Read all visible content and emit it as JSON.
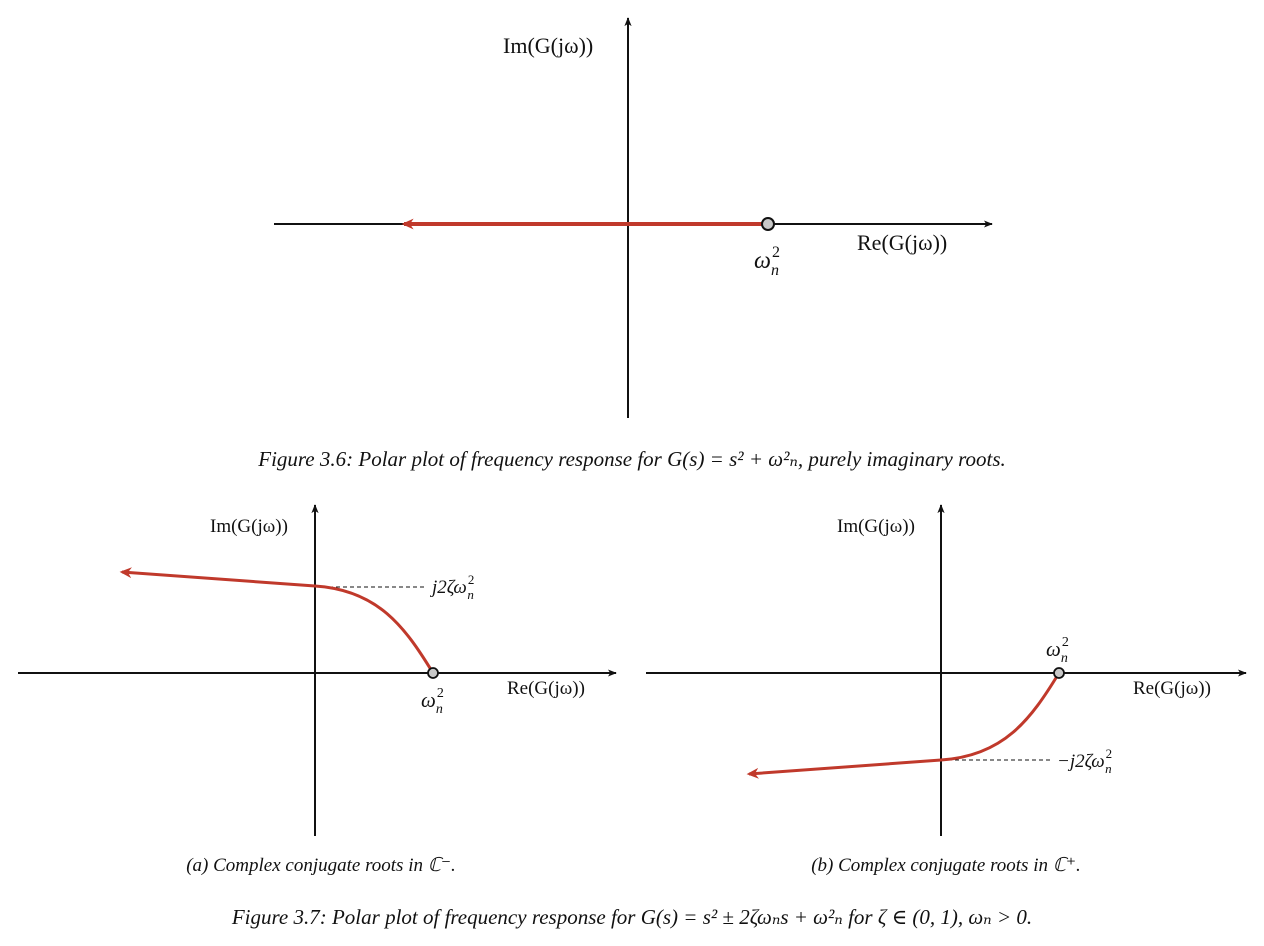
{
  "figure_3_6": {
    "axis_im_label": "Im(G(jω))",
    "axis_re_label": "Re(G(jω))",
    "point_label": {
      "base": "ω",
      "sup": "2",
      "sub": "n"
    },
    "caption": {
      "prefix": "Figure 3.6: Polar plot of frequency response for ",
      "formula": "G(s) = s² + ω²ₙ",
      "suffix": ", purely imaginary roots."
    }
  },
  "figure_3_7": {
    "panel_a": {
      "axis_im_label": "Im(G(jω))",
      "axis_re_label": "Re(G(jω))",
      "intercept_label": {
        "prefix": "j2ζ",
        "base": "ω",
        "sup": "2",
        "sub": "n"
      },
      "point_label": {
        "base": "ω",
        "sup": "2",
        "sub": "n"
      },
      "caption": "(a) Complex conjugate roots in ℂ⁻."
    },
    "panel_b": {
      "axis_im_label": "Im(G(jω))",
      "axis_re_label": "Re(G(jω))",
      "intercept_label": {
        "prefix": "−j2ζ",
        "base": "ω",
        "sup": "2",
        "sub": "n"
      },
      "point_label": {
        "base": "ω",
        "sup": "2",
        "sub": "n"
      },
      "caption": "(b) Complex conjugate roots in ℂ⁺."
    },
    "caption": "Figure 3.7: Polar plot of frequency response for G(s) = s² ± 2ζωₙs + ω²ₙ for ζ ∈ (0, 1), ωₙ > 0."
  },
  "colors": {
    "curve": "#c0392b",
    "axis": "#111111",
    "marker_fill": "#c8c8c8"
  }
}
